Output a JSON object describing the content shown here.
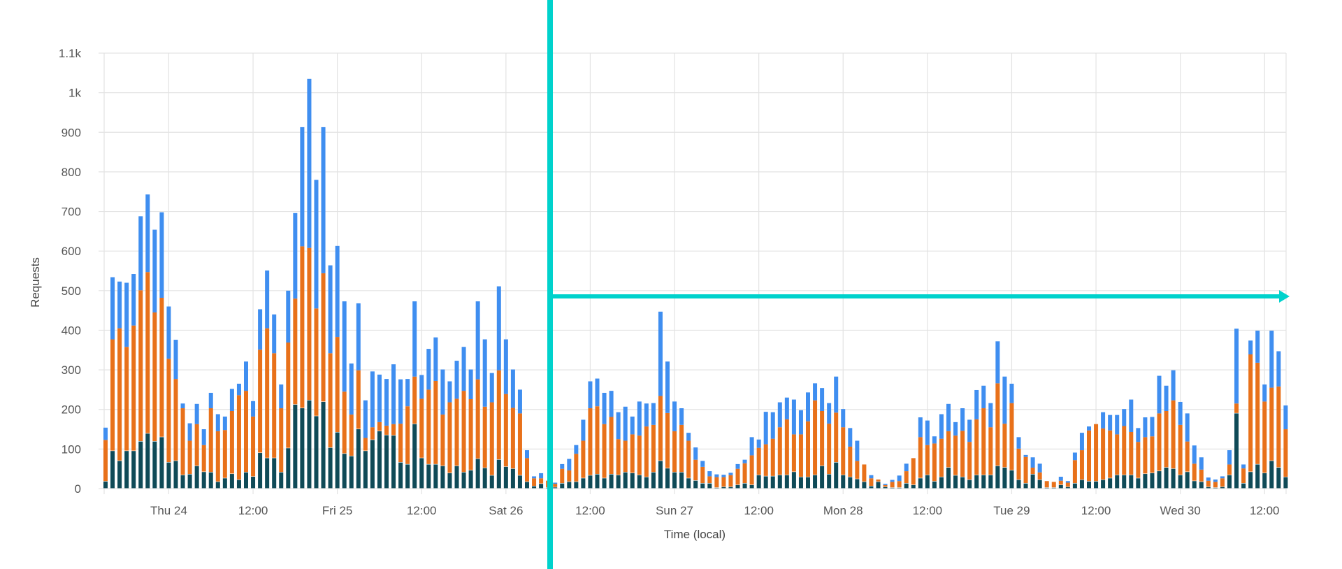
{
  "chart_data": {
    "type": "bar",
    "stacked": true,
    "xlabel": "Time (local)",
    "ylabel": "Requests",
    "ylim": [
      0,
      1100
    ],
    "y_ticks": [
      "0",
      "100",
      "200",
      "300",
      "400",
      "500",
      "600",
      "700",
      "800",
      "900",
      "1k",
      "1.1k"
    ],
    "x_ticks": [
      "Thu 24",
      "12:00",
      "Fri 25",
      "12:00",
      "Sat 26",
      "12:00",
      "Sun 27",
      "12:00",
      "Mon 28",
      "12:00",
      "Tue 29",
      "12:00",
      "Wed 30",
      "12:00"
    ],
    "bar_interval": "1 hour",
    "grid": true,
    "legend": "none",
    "series": [
      {
        "color": "#0f4a57",
        "values": [
          18,
          95,
          70,
          95,
          95,
          119,
          139,
          119,
          130,
          66,
          70,
          34,
          36,
          57,
          42,
          41,
          17,
          26,
          37,
          22,
          41,
          30,
          90,
          77,
          77,
          41,
          102,
          212,
          203,
          223,
          183,
          219,
          103,
          142,
          88,
          82,
          150,
          95,
          123,
          145,
          135,
          134,
          66,
          61,
          163,
          77,
          61,
          61,
          57,
          39,
          57,
          41,
          46,
          75,
          52,
          33,
          73,
          55,
          50,
          33,
          17,
          6,
          12,
          2,
          3,
          13,
          17,
          17,
          26,
          33,
          36,
          26,
          36,
          34,
          41,
          39,
          34,
          29,
          41,
          70,
          51,
          41,
          41,
          26,
          20,
          13,
          13,
          2,
          4,
          4,
          9,
          13,
          9,
          34,
          31,
          31,
          34,
          34,
          42,
          29,
          29,
          34,
          57,
          36,
          66,
          34,
          29,
          24,
          17,
          6,
          17,
          4,
          2,
          2,
          13,
          9,
          26,
          34,
          18,
          29,
          53,
          33,
          29,
          22,
          34,
          34,
          34,
          57,
          53,
          46,
          22,
          13,
          36,
          22,
          2,
          2,
          9,
          4,
          13,
          22,
          18,
          18,
          22,
          26,
          34,
          34,
          34,
          26,
          37,
          39,
          44,
          53,
          50,
          34,
          42,
          19,
          17,
          4,
          2,
          4,
          34,
          190,
          13,
          42,
          61,
          39,
          70,
          53,
          29
        ]
      },
      {
        "color": "#e8711a",
        "values": [
          105,
          282,
          335,
          263,
          317,
          382,
          408,
          326,
          352,
          262,
          207,
          169,
          85,
          106,
          68,
          162,
          128,
          122,
          159,
          214,
          206,
          152,
          261,
          328,
          265,
          162,
          267,
          268,
          409,
          385,
          272,
          325,
          239,
          241,
          157,
          105,
          149,
          33,
          32,
          23,
          24,
          29,
          98,
          147,
          120,
          150,
          189,
          211,
          130,
          179,
          170,
          206,
          180,
          201,
          155,
          185,
          226,
          184,
          154,
          157,
          60,
          20,
          14,
          18,
          9,
          37,
          29,
          71,
          95,
          170,
          172,
          137,
          145,
          91,
          80,
          98,
          100,
          128,
          120,
          164,
          140,
          104,
          120,
          95,
          53,
          42,
          18,
          27,
          25,
          30,
          41,
          51,
          75,
          69,
          81,
          95,
          121,
          141,
          95,
          108,
          141,
          189,
          139,
          128,
          126,
          121,
          77,
          46,
          44,
          20,
          6,
          5,
          15,
          17,
          31,
          68,
          104,
          76,
          96,
          97,
          92,
          101,
          117,
          96,
          141,
          169,
          121,
          209,
          111,
          170,
          79,
          67,
          17,
          19,
          17,
          15,
          11,
          11,
          59,
          75,
          129,
          145,
          130,
          121,
          103,
          124,
          109,
          92,
          93,
          93,
          146,
          143,
          173,
          127,
          77,
          44,
          31,
          16,
          15,
          22,
          27,
          25,
          38,
          297,
          257,
          181,
          185,
          205,
          121
        ]
      },
      {
        "color": "#3f8ef0",
        "values": [
          31,
          157,
          118,
          162,
          130,
          187,
          196,
          209,
          216,
          132,
          99,
          12,
          44,
          51,
          40,
          39,
          43,
          34,
          56,
          29,
          74,
          39,
          102,
          146,
          98,
          60,
          131,
          216,
          301,
          427,
          325,
          369,
          222,
          230,
          228,
          129,
          169,
          95,
          141,
          120,
          118,
          151,
          112,
          69,
          190,
          60,
          103,
          110,
          114,
          53,
          96,
          111,
          75,
          197,
          170,
          74,
          212,
          138,
          97,
          60,
          20,
          5,
          13,
          0,
          3,
          12,
          29,
          22,
          53,
          68,
          70,
          79,
          66,
          68,
          86,
          45,
          86,
          58,
          55,
          213,
          130,
          75,
          42,
          20,
          31,
          15,
          13,
          7,
          6,
          6,
          12,
          9,
          46,
          21,
          82,
          67,
          63,
          55,
          88,
          61,
          73,
          43,
          58,
          52,
          91,
          46,
          47,
          51,
          0,
          8,
          0,
          3,
          5,
          14,
          19,
          0,
          50,
          62,
          18,
          62,
          69,
          34,
          57,
          56,
          74,
          57,
          61,
          106,
          119,
          49,
          29,
          5,
          26,
          22,
          0,
          0,
          10,
          4,
          19,
          44,
          10,
          0,
          41,
          39,
          49,
          43,
          82,
          35,
          50,
          49,
          95,
          64,
          76,
          58,
          71,
          46,
          31,
          8,
          6,
          5,
          36,
          189,
          10,
          35,
          81,
          43,
          144,
          89,
          60
        ]
      }
    ]
  },
  "annotations": {
    "color": "#00d2cc"
  }
}
